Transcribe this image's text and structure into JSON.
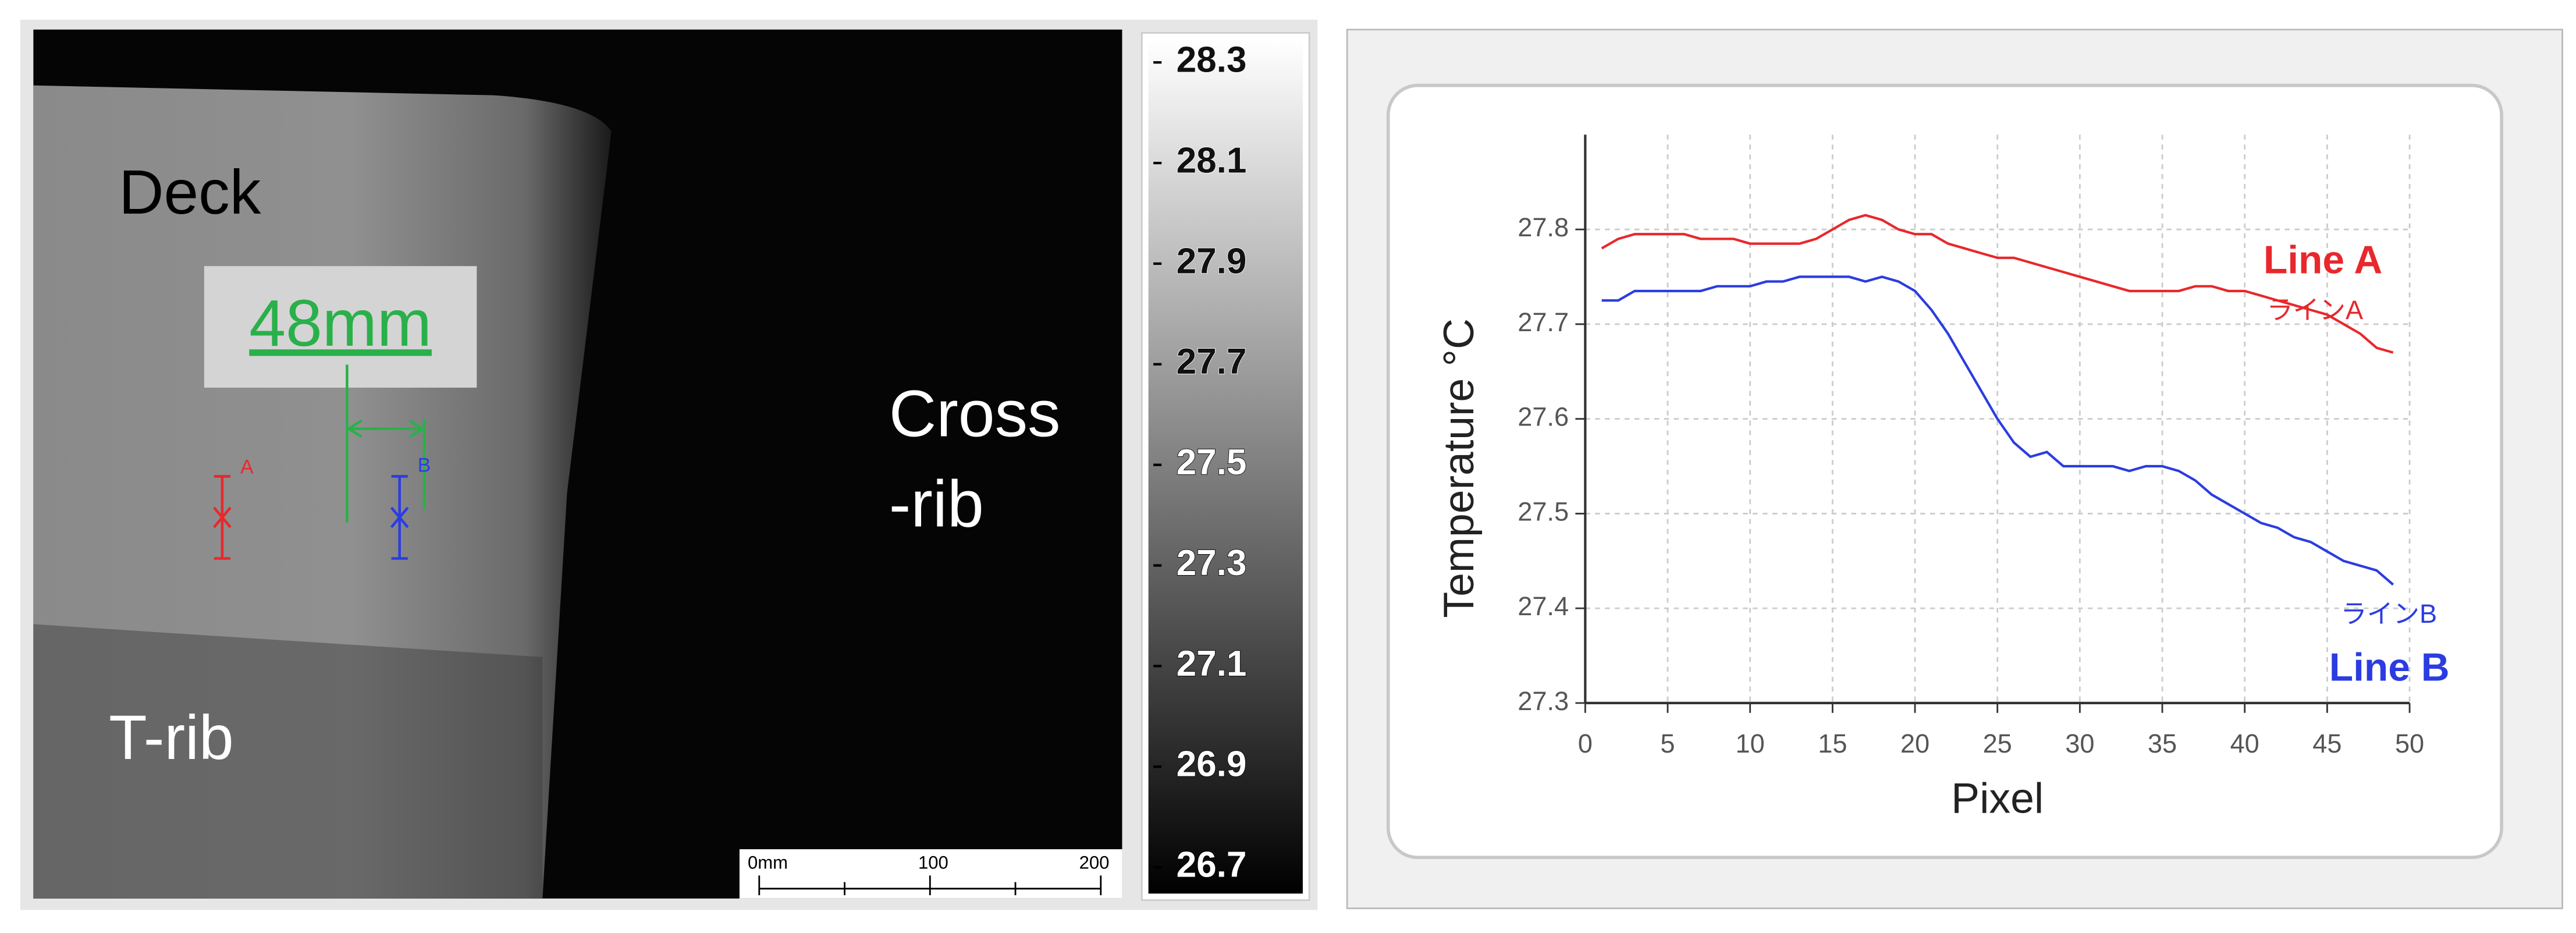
{
  "thermal_image": {
    "deck_label": "Deck",
    "cross_rib_label": [
      "Cross",
      "-rib"
    ],
    "t_rib_label": "T-rib",
    "measurement": "48mm",
    "marker_labels": [
      "A",
      "B"
    ],
    "scale_bar_labels": [
      "0mm",
      "100",
      "200"
    ],
    "colorbar": {
      "ticks": [
        28.3,
        28.1,
        27.9,
        27.7,
        27.5,
        27.3,
        27.1,
        26.9,
        26.7
      ]
    }
  },
  "chart_data": {
    "type": "line",
    "x_label": "Pixel",
    "y_label": "Temperature °C",
    "x": [
      1,
      2,
      3,
      4,
      5,
      6,
      7,
      8,
      9,
      10,
      11,
      12,
      13,
      14,
      15,
      16,
      17,
      18,
      19,
      20,
      21,
      22,
      23,
      24,
      25,
      26,
      27,
      28,
      29,
      30,
      31,
      32,
      33,
      34,
      35,
      36,
      37,
      38,
      39,
      40,
      41,
      42,
      43,
      44,
      45,
      46,
      47,
      48,
      49
    ],
    "series": [
      {
        "name": "Line A",
        "color": "#e8282c",
        "values": [
          27.78,
          27.79,
          27.795,
          27.795,
          27.795,
          27.795,
          27.79,
          27.79,
          27.79,
          27.785,
          27.785,
          27.785,
          27.785,
          27.79,
          27.8,
          27.81,
          27.815,
          27.81,
          27.8,
          27.795,
          27.795,
          27.785,
          27.78,
          27.775,
          27.77,
          27.77,
          27.765,
          27.76,
          27.755,
          27.75,
          27.745,
          27.74,
          27.735,
          27.735,
          27.735,
          27.735,
          27.74,
          27.74,
          27.735,
          27.735,
          27.73,
          27.725,
          27.72,
          27.715,
          27.71,
          27.7,
          27.69,
          27.675,
          27.67
        ]
      },
      {
        "name": "Line B",
        "color": "#2b3de0",
        "values": [
          27.725,
          27.725,
          27.735,
          27.735,
          27.735,
          27.735,
          27.735,
          27.74,
          27.74,
          27.74,
          27.745,
          27.745,
          27.75,
          27.75,
          27.75,
          27.75,
          27.745,
          27.75,
          27.745,
          27.735,
          27.715,
          27.69,
          27.66,
          27.63,
          27.6,
          27.575,
          27.56,
          27.565,
          27.55,
          27.55,
          27.55,
          27.55,
          27.545,
          27.55,
          27.55,
          27.545,
          27.535,
          27.52,
          27.51,
          27.5,
          27.49,
          27.485,
          27.475,
          27.47,
          27.46,
          27.45,
          27.445,
          27.44,
          27.425
        ]
      }
    ],
    "annotations": [
      "ラインA",
      "ラインB"
    ],
    "xlim": [
      0,
      50
    ],
    "xticks": [
      0,
      5,
      10,
      15,
      20,
      25,
      30,
      35,
      40,
      45,
      50
    ],
    "ylim": [
      27.3,
      27.9
    ],
    "yticks": [
      27.3,
      27.4,
      27.5,
      27.6,
      27.7,
      27.8
    ],
    "grid": true
  }
}
